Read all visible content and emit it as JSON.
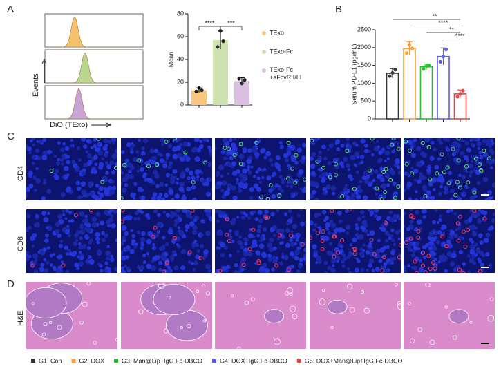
{
  "panels": {
    "a": "A",
    "b": "B",
    "c": "C",
    "d": "D"
  },
  "flow": {
    "y_label": "Events",
    "x_label": "DiO (TExo)",
    "colors": [
      "#f5c26b",
      "#b9d68f",
      "#c9a3d4"
    ]
  },
  "images": {
    "rows": [
      "CD4",
      "CD8",
      "H&E"
    ]
  },
  "chart_data": [
    {
      "type": "bar",
      "y_label": "Mean",
      "categories": [
        "TExo",
        "TExo-Fc",
        "TExo-Fc +aFcγRII/III"
      ],
      "values": [
        13,
        57,
        21
      ],
      "errors": [
        2,
        8,
        3
      ],
      "points": [
        [
          12,
          15,
          13
        ],
        [
          51,
          65,
          56
        ],
        [
          23,
          19,
          22
        ]
      ],
      "colors": [
        "#f6c77c",
        "#cfe3b0",
        "#d9bfe0"
      ],
      "ylim": [
        0,
        80
      ],
      "yticks": [
        0,
        20,
        40,
        60,
        80
      ],
      "significance": [
        {
          "pair": [
            0,
            1
          ],
          "label": "****"
        },
        {
          "pair": [
            1,
            2
          ],
          "label": "***"
        }
      ]
    },
    {
      "type": "bar",
      "y_label": "Serum PD-L1 (pg/mL)",
      "categories": [
        "G1: Con",
        "G2: DOX",
        "G3: Man@Lip+IgG Fc-DBCO",
        "G4: DOX+IgG Fc-DBCO",
        "G5: DOX+Man@Lip+IgG Fc-DBCO"
      ],
      "values": [
        1280,
        1970,
        1460,
        1750,
        700
      ],
      "errors": [
        130,
        190,
        80,
        240,
        110
      ],
      "points": [
        [
          1200,
          1290,
          1380
        ],
        [
          1850,
          2080,
          1980
        ],
        [
          1400,
          1480,
          1500
        ],
        [
          1600,
          1750,
          1950
        ],
        [
          620,
          700,
          790
        ]
      ],
      "colors": [
        "#333333",
        "#f5a03c",
        "#2ebd2e",
        "#5b5bf0",
        "#e84646"
      ],
      "outline": true,
      "ylim": [
        0,
        2500
      ],
      "yticks": [
        0,
        500,
        1000,
        1500,
        2000,
        2500
      ],
      "significance": [
        {
          "pair": [
            0,
            4
          ],
          "label": "**"
        },
        {
          "pair": [
            1,
            4
          ],
          "label": "****"
        },
        {
          "pair": [
            2,
            4
          ],
          "label": "**"
        },
        {
          "pair": [
            3,
            4
          ],
          "label": "****"
        }
      ]
    }
  ]
}
